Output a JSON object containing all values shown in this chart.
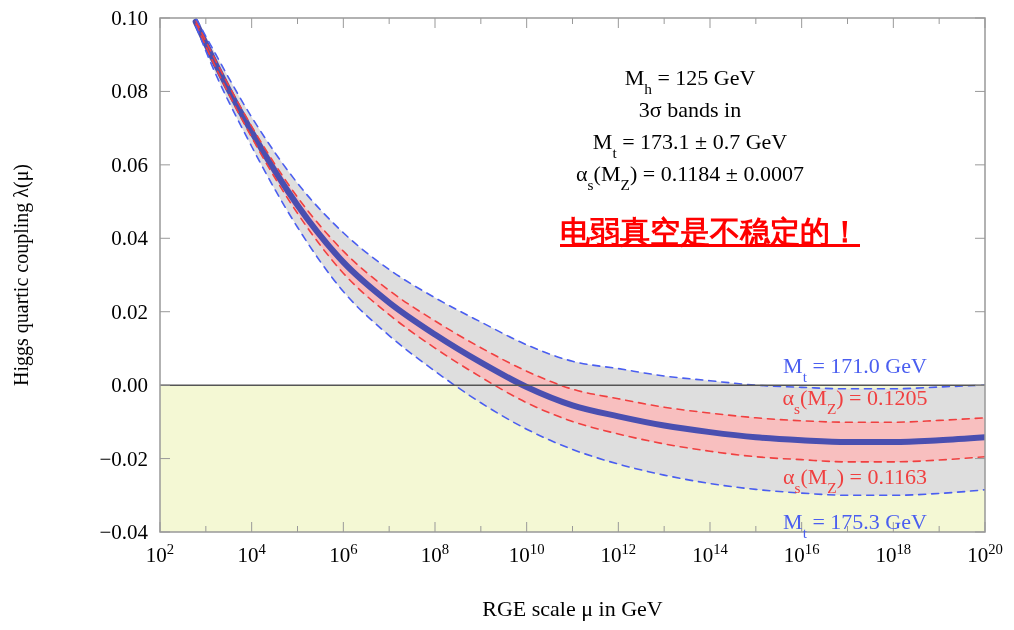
{
  "chart_data": {
    "type": "line",
    "ylabel": "Higgs quartic coupling λ(μ)",
    "xlabel": "RGE scale μ in GeV",
    "log": "x",
    "xlim": [
      100.0,
      1e+20
    ],
    "ylim": [
      -0.04,
      0.1
    ],
    "xticks": [
      {
        "value": 100.0,
        "label": "10$^{2}$"
      },
      {
        "value": 1000.0,
        "label": null
      },
      {
        "value": 10000.0,
        "label": "10$^{4}$"
      },
      {
        "value": 100000.0,
        "label": null
      },
      {
        "value": 1000000.0,
        "label": "10$^{6}$"
      },
      {
        "value": 10000000.0,
        "label": null
      },
      {
        "value": 100000000.0,
        "label": "10$^{8}$"
      },
      {
        "value": 1000000000.0,
        "label": null
      },
      {
        "value": 10000000000.0,
        "label": "10$^{10}$"
      },
      {
        "value": 100000000000.0,
        "label": null
      },
      {
        "value": 1000000000000.0,
        "label": "10$^{12}$"
      },
      {
        "value": 10000000000000.0,
        "label": null
      },
      {
        "value": 100000000000000.0,
        "label": "10$^{14}$"
      },
      {
        "value": 1000000000000000.0,
        "label": null
      },
      {
        "value": 1e+16,
        "label": "10$^{16}$"
      },
      {
        "value": 1e+17,
        "label": null
      },
      {
        "value": 1e+18,
        "label": "10$^{18}$"
      },
      {
        "value": 1e+19,
        "label": null
      },
      {
        "value": 1e+20,
        "label": "10$^{20}$"
      }
    ],
    "yticks": [
      {
        "value": -0.04,
        "label": "−0.04"
      },
      {
        "value": -0.02,
        "label": "−0.02"
      },
      {
        "value": 0,
        "label": "0.00"
      },
      {
        "value": 0.02,
        "label": "0.02"
      },
      {
        "value": 0.04,
        "label": "0.04"
      },
      {
        "value": 0.06,
        "label": "0.06"
      },
      {
        "value": 0.08,
        "label": "0.08"
      },
      {
        "value": 0.1,
        "label": "0.10"
      }
    ],
    "x": [
      600,
      1000.0,
      10000.0,
      100000.0,
      1000000.0,
      10000000.0,
      100000000.0,
      1000000000.0,
      10000000000.0,
      100000000000.0,
      1000000000000.0,
      10000000000000.0,
      100000000000000.0,
      1000000000000000.0,
      1e+16,
      1e+17,
      1e+18,
      1e+19,
      1e+20
    ],
    "series": [
      {
        "name": "M$_{t}$ = 171.0 GeV",
        "color": "#4a5ef0",
        "line_style": "dashed",
        "values": [
          0.1,
          0.095,
          0.073,
          0.055,
          0.0415,
          0.0315,
          0.0238,
          0.0172,
          0.011,
          0.0065,
          0.0045,
          0.0025,
          0.0012,
          0.0,
          -0.0006,
          -0.001,
          -0.001,
          -0.0005,
          0.0
        ]
      },
      {
        "name": "α$_{s}$(M$_{Z}$) = 0.1205",
        "color": "#f04040",
        "line_style": "dashed",
        "values": [
          0.0994,
          0.0937,
          0.0705,
          0.0512,
          0.0365,
          0.0258,
          0.0175,
          0.0102,
          0.0038,
          -0.0011,
          -0.0037,
          -0.006,
          -0.0076,
          -0.0089,
          -0.0097,
          -0.0101,
          -0.0101,
          -0.0096,
          -0.0089
        ],
        "lower": [
          0.0986,
          0.0923,
          0.0675,
          0.0468,
          0.0305,
          0.0192,
          0.0101,
          0.0022,
          -0.0048,
          -0.0099,
          -0.0133,
          -0.016,
          -0.018,
          -0.0195,
          -0.0203,
          -0.0209,
          -0.0209,
          -0.0204,
          -0.0195
        ],
        "upper": [
          0.0994,
          0.0937,
          0.0705,
          0.0512,
          0.0365,
          0.0258,
          0.0175,
          0.0102,
          0.0038,
          -0.0011,
          -0.0037,
          -0.006,
          -0.0076,
          -0.0089,
          -0.0097,
          -0.0101,
          -0.0101,
          -0.0096,
          -0.0089
        ]
      },
      {
        "name": "α$_{s}$(M$_{Z}$) = 0.1163",
        "color": "#f04040",
        "line_style": "dashed",
        "values": [
          0.0986,
          0.0923,
          0.0675,
          0.0468,
          0.0305,
          0.0192,
          0.0101,
          0.0022,
          -0.0048,
          -0.0099,
          -0.0133,
          -0.016,
          -0.018,
          -0.0195,
          -0.0203,
          -0.0209,
          -0.0209,
          -0.0204,
          -0.0195
        ]
      },
      {
        "name": "M$_{t}$ = 175.3 GeV",
        "color": "#4a5ef0",
        "line_style": "dashed",
        "values": [
          0.098,
          0.091,
          0.065,
          0.043,
          0.0255,
          0.0135,
          0.0038,
          -0.0048,
          -0.012,
          -0.0175,
          -0.0215,
          -0.0245,
          -0.0268,
          -0.0284,
          -0.0294,
          -0.03,
          -0.03,
          -0.0295,
          -0.0285
        ]
      },
      {
        "color": "#4a4fb0",
        "line_style": "solid",
        "values": [
          0.099,
          0.093,
          0.069,
          0.049,
          0.0335,
          0.0225,
          0.0138,
          0.0062,
          -0.0005,
          -0.0055,
          -0.0085,
          -0.011,
          -0.0128,
          -0.0142,
          -0.015,
          -0.0155,
          -0.0155,
          -0.015,
          -0.0142
        ],
        "lower": [
          0.098,
          0.091,
          0.065,
          0.043,
          0.0255,
          0.0135,
          0.0038,
          -0.0048,
          -0.012,
          -0.0175,
          -0.0215,
          -0.0245,
          -0.0268,
          -0.0284,
          -0.0294,
          -0.03,
          -0.03,
          -0.0295,
          -0.0285
        ],
        "upper": [
          0.1,
          0.095,
          0.073,
          0.055,
          0.0415,
          0.0315,
          0.0238,
          0.0172,
          0.011,
          0.0065,
          0.0045,
          0.0025,
          0.0012,
          0.0,
          -0.0006,
          -0.001,
          -0.001,
          -0.0005,
          0.0
        ]
      }
    ],
    "bands": [
      {
        "axis": "y",
        "from": -0.04,
        "to": 0,
        "color": "#f4f8d4"
      }
    ],
    "ref_lines": [
      {
        "axis": "y",
        "value": 0,
        "color": "#555555"
      }
    ],
    "annotations": [
      "M$_{h}$ = 125 GeV",
      "3σ bands in",
      "M$_{t}$ = 173.1 ± 0.7 GeV",
      "α$_{s}$(M$_{Z}$) = 0.1184 ± 0.0007",
      "电弱真空是不稳定的！"
    ]
  }
}
